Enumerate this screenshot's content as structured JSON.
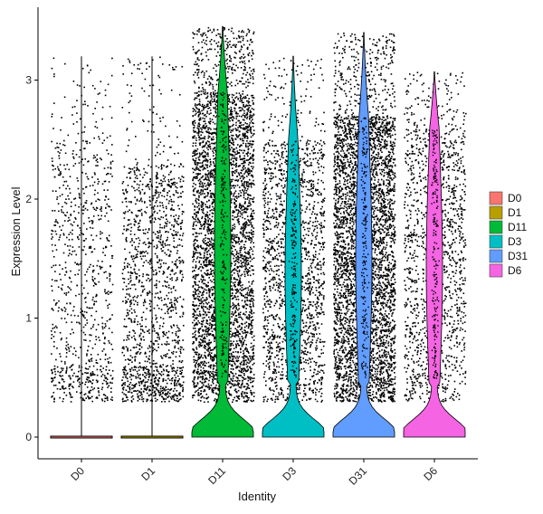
{
  "chart_data": {
    "type": "violin",
    "xlabel": "Identity",
    "ylabel": "Expression Level",
    "categories": [
      "D0",
      "D1",
      "D11",
      "D3",
      "D31",
      "D6"
    ],
    "y_ticks": [
      0,
      1,
      2,
      3
    ],
    "ylim": [
      -0.18,
      3.5
    ],
    "grid": false,
    "legend_position": "right",
    "series": [
      {
        "name": "D0",
        "color": "#F8766D",
        "max_value": 3.2,
        "dot_count": 900,
        "dot_high": 2.5,
        "zero_violin": true
      },
      {
        "name": "D1",
        "color": "#B79F00",
        "max_value": 3.2,
        "dot_count": 1500,
        "dot_high": 2.3,
        "zero_violin": true
      },
      {
        "name": "D11",
        "color": "#00BA38",
        "max_value": 3.45,
        "dot_count": 4200,
        "dot_high": 2.9,
        "zero_violin": false
      },
      {
        "name": "D3",
        "color": "#00BFC4",
        "max_value": 3.2,
        "dot_count": 1800,
        "dot_high": 2.5,
        "zero_violin": false
      },
      {
        "name": "D31",
        "color": "#619CFF",
        "max_value": 3.4,
        "dot_count": 4500,
        "dot_high": 2.7,
        "zero_violin": false
      },
      {
        "name": "D6",
        "color": "#F564E3",
        "max_value": 3.07,
        "dot_count": 1400,
        "dot_high": 2.6,
        "zero_violin": false
      }
    ]
  }
}
